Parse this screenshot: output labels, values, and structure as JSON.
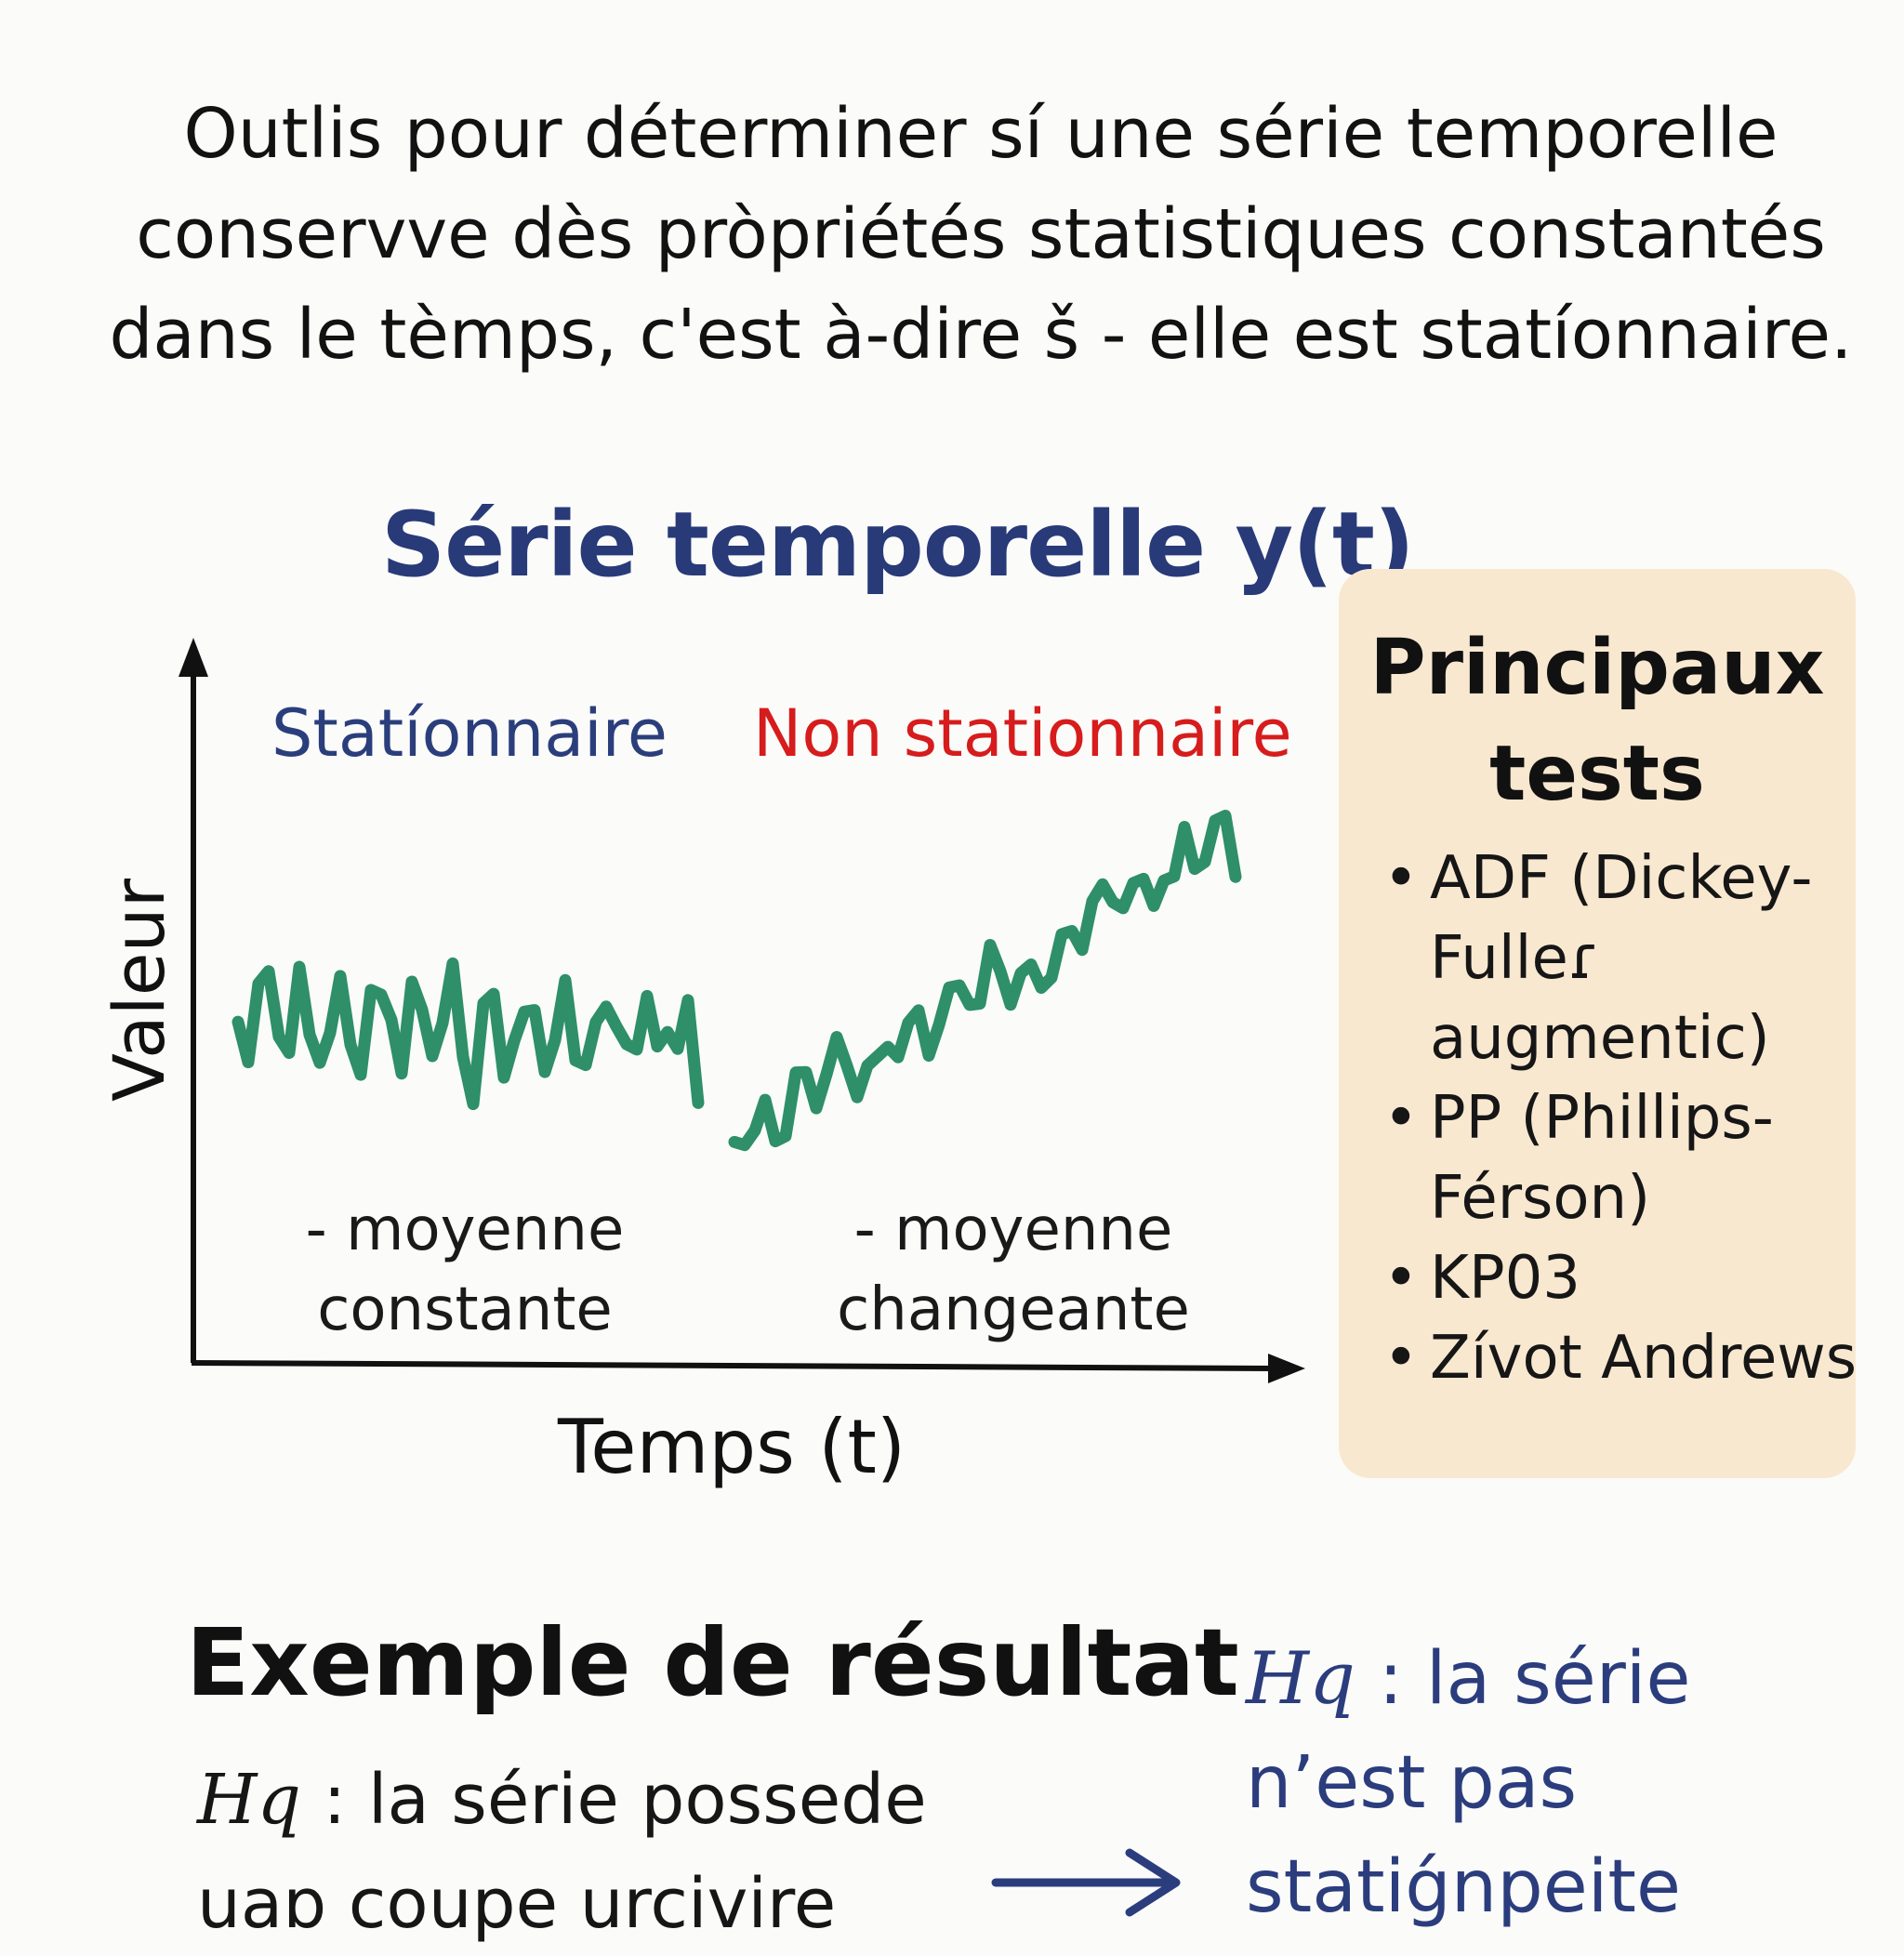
{
  "intro": {
    "line1": "Outlis pour déterminer sí une série temporelle",
    "line2": "conservve dès pròpriétés statistiques constantés",
    "line3": "dans le tèmps, c'est  à-dire š - elle est statíonnaire."
  },
  "diagram": {
    "title": "Série temporelle y(t)",
    "y_axis_label": "Valeur",
    "x_axis_label": "Temps (t)",
    "stationary": {
      "label": "Statíonnaire",
      "note_line1": "- moyenne",
      "note_line2": "constante"
    },
    "non_stationary": {
      "label": "Non stationnaire",
      "note_line1": "- moyenne",
      "note_line2": "changeante"
    },
    "line_color": "#2e8f68",
    "stationary_color": "#2b3e7c",
    "non_stationary_color": "#d61c1c"
  },
  "tests": {
    "title_line1": "Principaux",
    "title_line2": "tests",
    "items": [
      "ADF (Dickey- Fulleɾ augmentic)",
      "PP  (Phillips- Férson)",
      "KP03",
      "Zívot Andrews"
    ],
    "bullet": "•",
    "background": "#f9e8d0"
  },
  "result": {
    "heading": "Exemple de résultat",
    "h0_symbol": "Hq",
    "h0_text": " : la série possede uaɒ coupe urcivire",
    "h1_symbol": "Hq",
    "h1_text": " : la série n’est pas statiǵnpeite",
    "arrow_color": "#2b3d7d"
  }
}
